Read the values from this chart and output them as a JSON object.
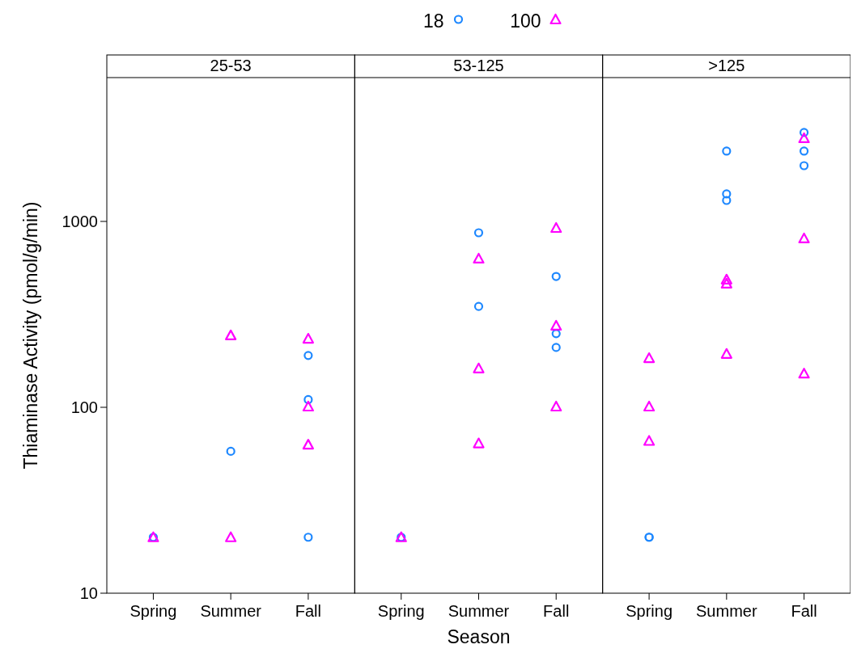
{
  "chart_data": [
    {
      "type": "scatter",
      "title": "25-53",
      "ylabel": "Thiaminase Activity (pmol/g/min)",
      "categories": [
        "Spring",
        "Summer",
        "Fall"
      ],
      "log": "y",
      "ylim": [
        10,
        5940
      ],
      "yticks": [
        10,
        100,
        1000
      ],
      "grid": false,
      "legend": "top",
      "tick_labels": "xy",
      "series": [
        {
          "name": "18",
          "color": "#1e88ff",
          "marker": "circle",
          "x": [
            "Spring",
            "Summer",
            "Fall",
            "Fall",
            "Fall"
          ],
          "values": [
            20,
            58,
            190,
            110,
            20
          ]
        },
        {
          "name": "100",
          "color": "#ff00ff",
          "marker": "triangle",
          "x": [
            "Spring",
            "Summer",
            "Summer",
            "Fall",
            "Fall",
            "Fall"
          ],
          "values": [
            20,
            244,
            20,
            234,
            101,
            63
          ]
        }
      ]
    },
    {
      "type": "scatter",
      "title": "53-125",
      "xlabel": "Season",
      "categories": [
        "Spring",
        "Summer",
        "Fall"
      ],
      "log": "y",
      "ylim": [
        10,
        5940
      ],
      "grid": false,
      "tick_labels": "x",
      "series": [
        {
          "color": "#1e88ff",
          "marker": "circle",
          "x": [
            "Spring",
            "Summer",
            "Summer",
            "Fall",
            "Fall",
            "Fall"
          ],
          "values": [
            20,
            869,
            349,
            506,
            249,
            210
          ]
        },
        {
          "color": "#ff00ff",
          "marker": "triangle",
          "x": [
            "Spring",
            "Summer",
            "Summer",
            "Summer",
            "Fall",
            "Fall",
            "Fall"
          ],
          "values": [
            20,
            631,
            162,
            64,
            923,
            275,
            101
          ]
        }
      ]
    },
    {
      "type": "scatter",
      "title": ">125",
      "categories": [
        "Spring",
        "Summer",
        "Fall"
      ],
      "log": "y",
      "ylim": [
        10,
        5940
      ],
      "grid": false,
      "tick_labels": "x",
      "series": [
        {
          "color": "#1e88ff",
          "marker": "circle",
          "x": [
            "Spring",
            "Spring",
            "Summer",
            "Summer",
            "Summer",
            "Fall",
            "Fall",
            "Fall"
          ],
          "values": [
            20,
            20,
            2390,
            1406,
            1297,
            3010,
            2390,
            1995
          ]
        },
        {
          "color": "#ff00ff",
          "marker": "triangle",
          "x": [
            "Spring",
            "Spring",
            "Spring",
            "Summer",
            "Summer",
            "Summer",
            "Fall",
            "Fall",
            "Fall"
          ],
          "values": [
            184,
            101,
            66,
            487,
            463,
            194,
            2805,
            811,
            152
          ]
        }
      ]
    }
  ]
}
